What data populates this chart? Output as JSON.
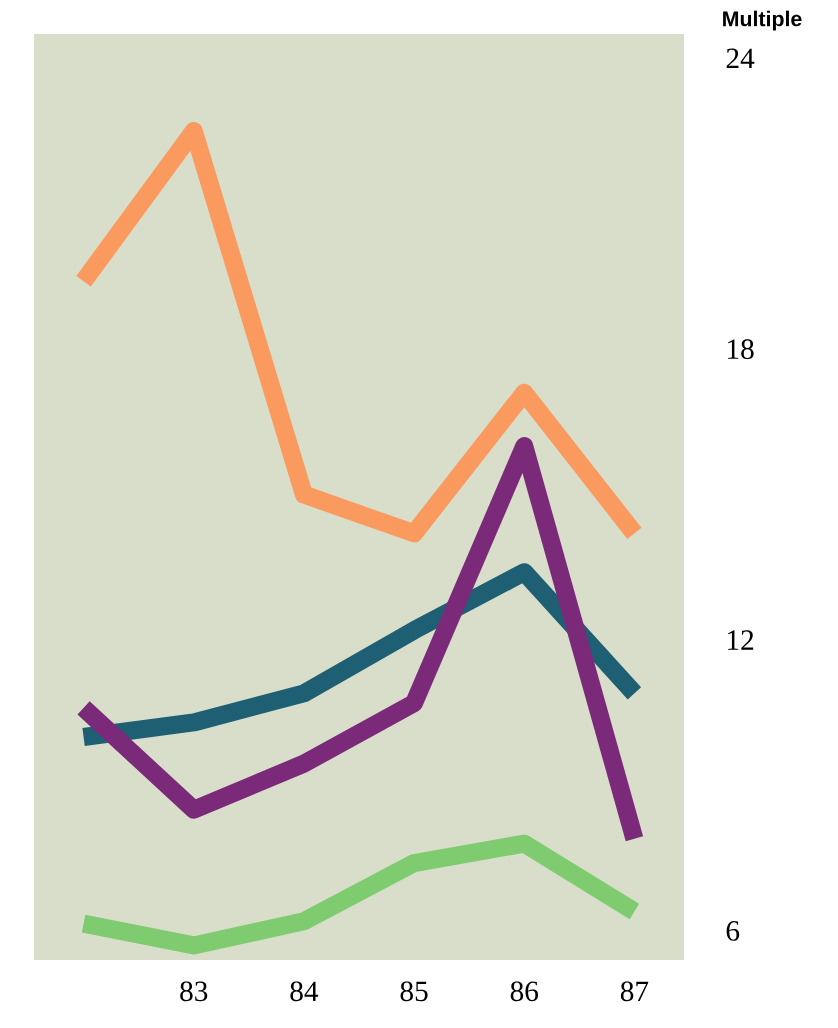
{
  "chart_data": {
    "type": "line",
    "ylabel": "Multiple",
    "x": [
      82,
      83,
      84,
      85,
      86,
      87
    ],
    "series": [
      {
        "color": "#fb9a5e",
        "values": [
          19.4,
          22.5,
          15.0,
          14.2,
          17.1,
          14.2
        ]
      },
      {
        "color": "#1f5f73",
        "values": [
          10.0,
          10.3,
          10.9,
          12.2,
          13.4,
          10.9
        ]
      },
      {
        "color": "#7a2a78",
        "values": [
          10.6,
          8.5,
          9.45,
          10.7,
          16.0,
          7.9
        ]
      },
      {
        "color": "#7fcb6f",
        "values": [
          6.15,
          5.7,
          6.2,
          7.4,
          7.8,
          6.4
        ]
      }
    ],
    "xlim": [
      81.55,
      87.45
    ],
    "ylim": [
      5.4,
      24.5
    ],
    "xticks": [
      83,
      84,
      85,
      86,
      87
    ],
    "yticks": [
      6,
      12,
      18,
      24
    ],
    "grid": false,
    "marker": "none",
    "line_style": "solid"
  }
}
